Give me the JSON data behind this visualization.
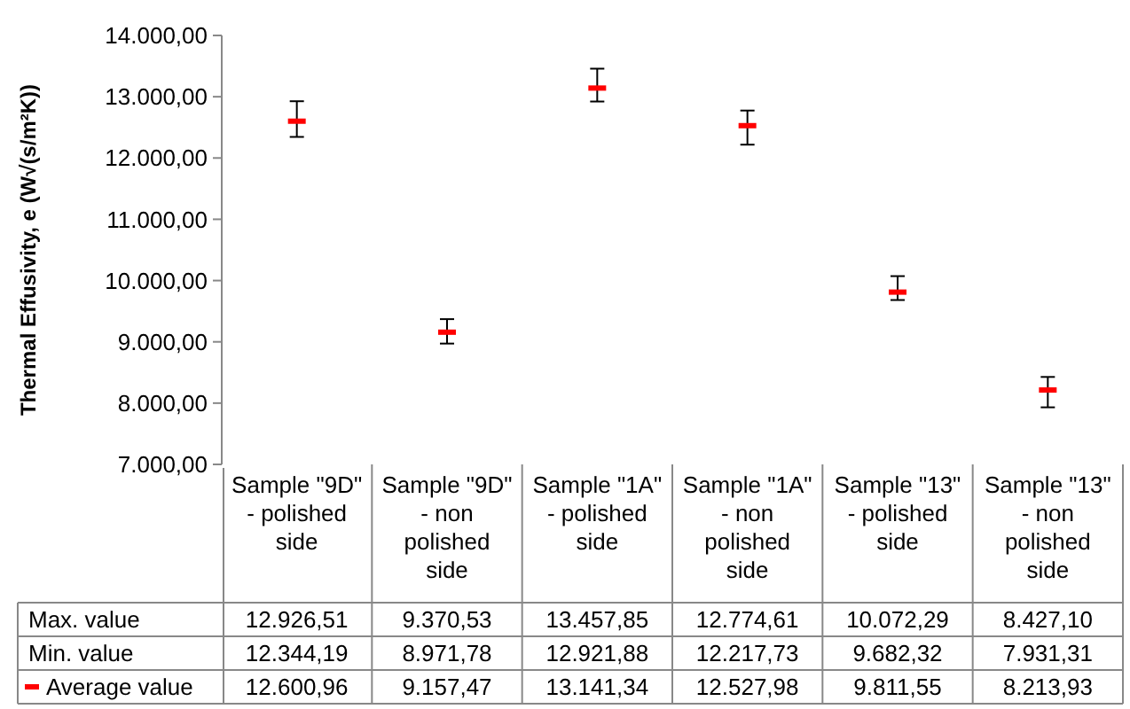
{
  "chart_data": {
    "type": "scatter",
    "ylabel": "Thermal Effusivity, e (W√(s/m²K))",
    "categories": [
      "Sample \"9D\" - polished side",
      "Sample \"9D\" - non polished side",
      "Sample \"1A\" - polished side",
      "Sample \"1A\" - non polished side",
      "Sample \"13\" - polished side",
      "Sample \"13\" - non polished side"
    ],
    "series": [
      {
        "name": "Average value",
        "color": "#ff0000",
        "values": [
          12600.96,
          9157.47,
          13141.34,
          12527.98,
          9811.55,
          8213.93
        ],
        "value_labels": [
          "12.600,96",
          "9.157,47",
          "13.141,34",
          "12.527,98",
          "9.811,55",
          "8.213,93"
        ],
        "errors": [
          [
            12344.19,
            12926.51
          ],
          [
            8971.78,
            9370.53
          ],
          [
            12921.88,
            13457.85
          ],
          [
            12217.73,
            12774.61
          ],
          [
            9682.32,
            10072.29
          ],
          [
            7931.31,
            8427.1
          ]
        ]
      }
    ],
    "annotations": [
      "Max. value",
      "Min. value",
      "12.926,51",
      "9.370,53",
      "13.457,85",
      "12.774,61",
      "10.072,29",
      "8.427,10",
      "12.344,19",
      "8.971,78",
      "12.921,88",
      "12.217,73",
      "9.682,32",
      "7.931,31"
    ],
    "ylim": [
      7000,
      14000
    ],
    "yticks": [
      {
        "value": 7000,
        "label": "7.000,00"
      },
      {
        "value": 8000,
        "label": "8.000,00"
      },
      {
        "value": 9000,
        "label": "9.000,00"
      },
      {
        "value": 10000,
        "label": "10.000,00"
      },
      {
        "value": 11000,
        "label": "11.000,00"
      },
      {
        "value": 12000,
        "label": "12.000,00"
      },
      {
        "value": 13000,
        "label": "13.000,00"
      },
      {
        "value": 14000,
        "label": "14.000,00"
      }
    ]
  }
}
